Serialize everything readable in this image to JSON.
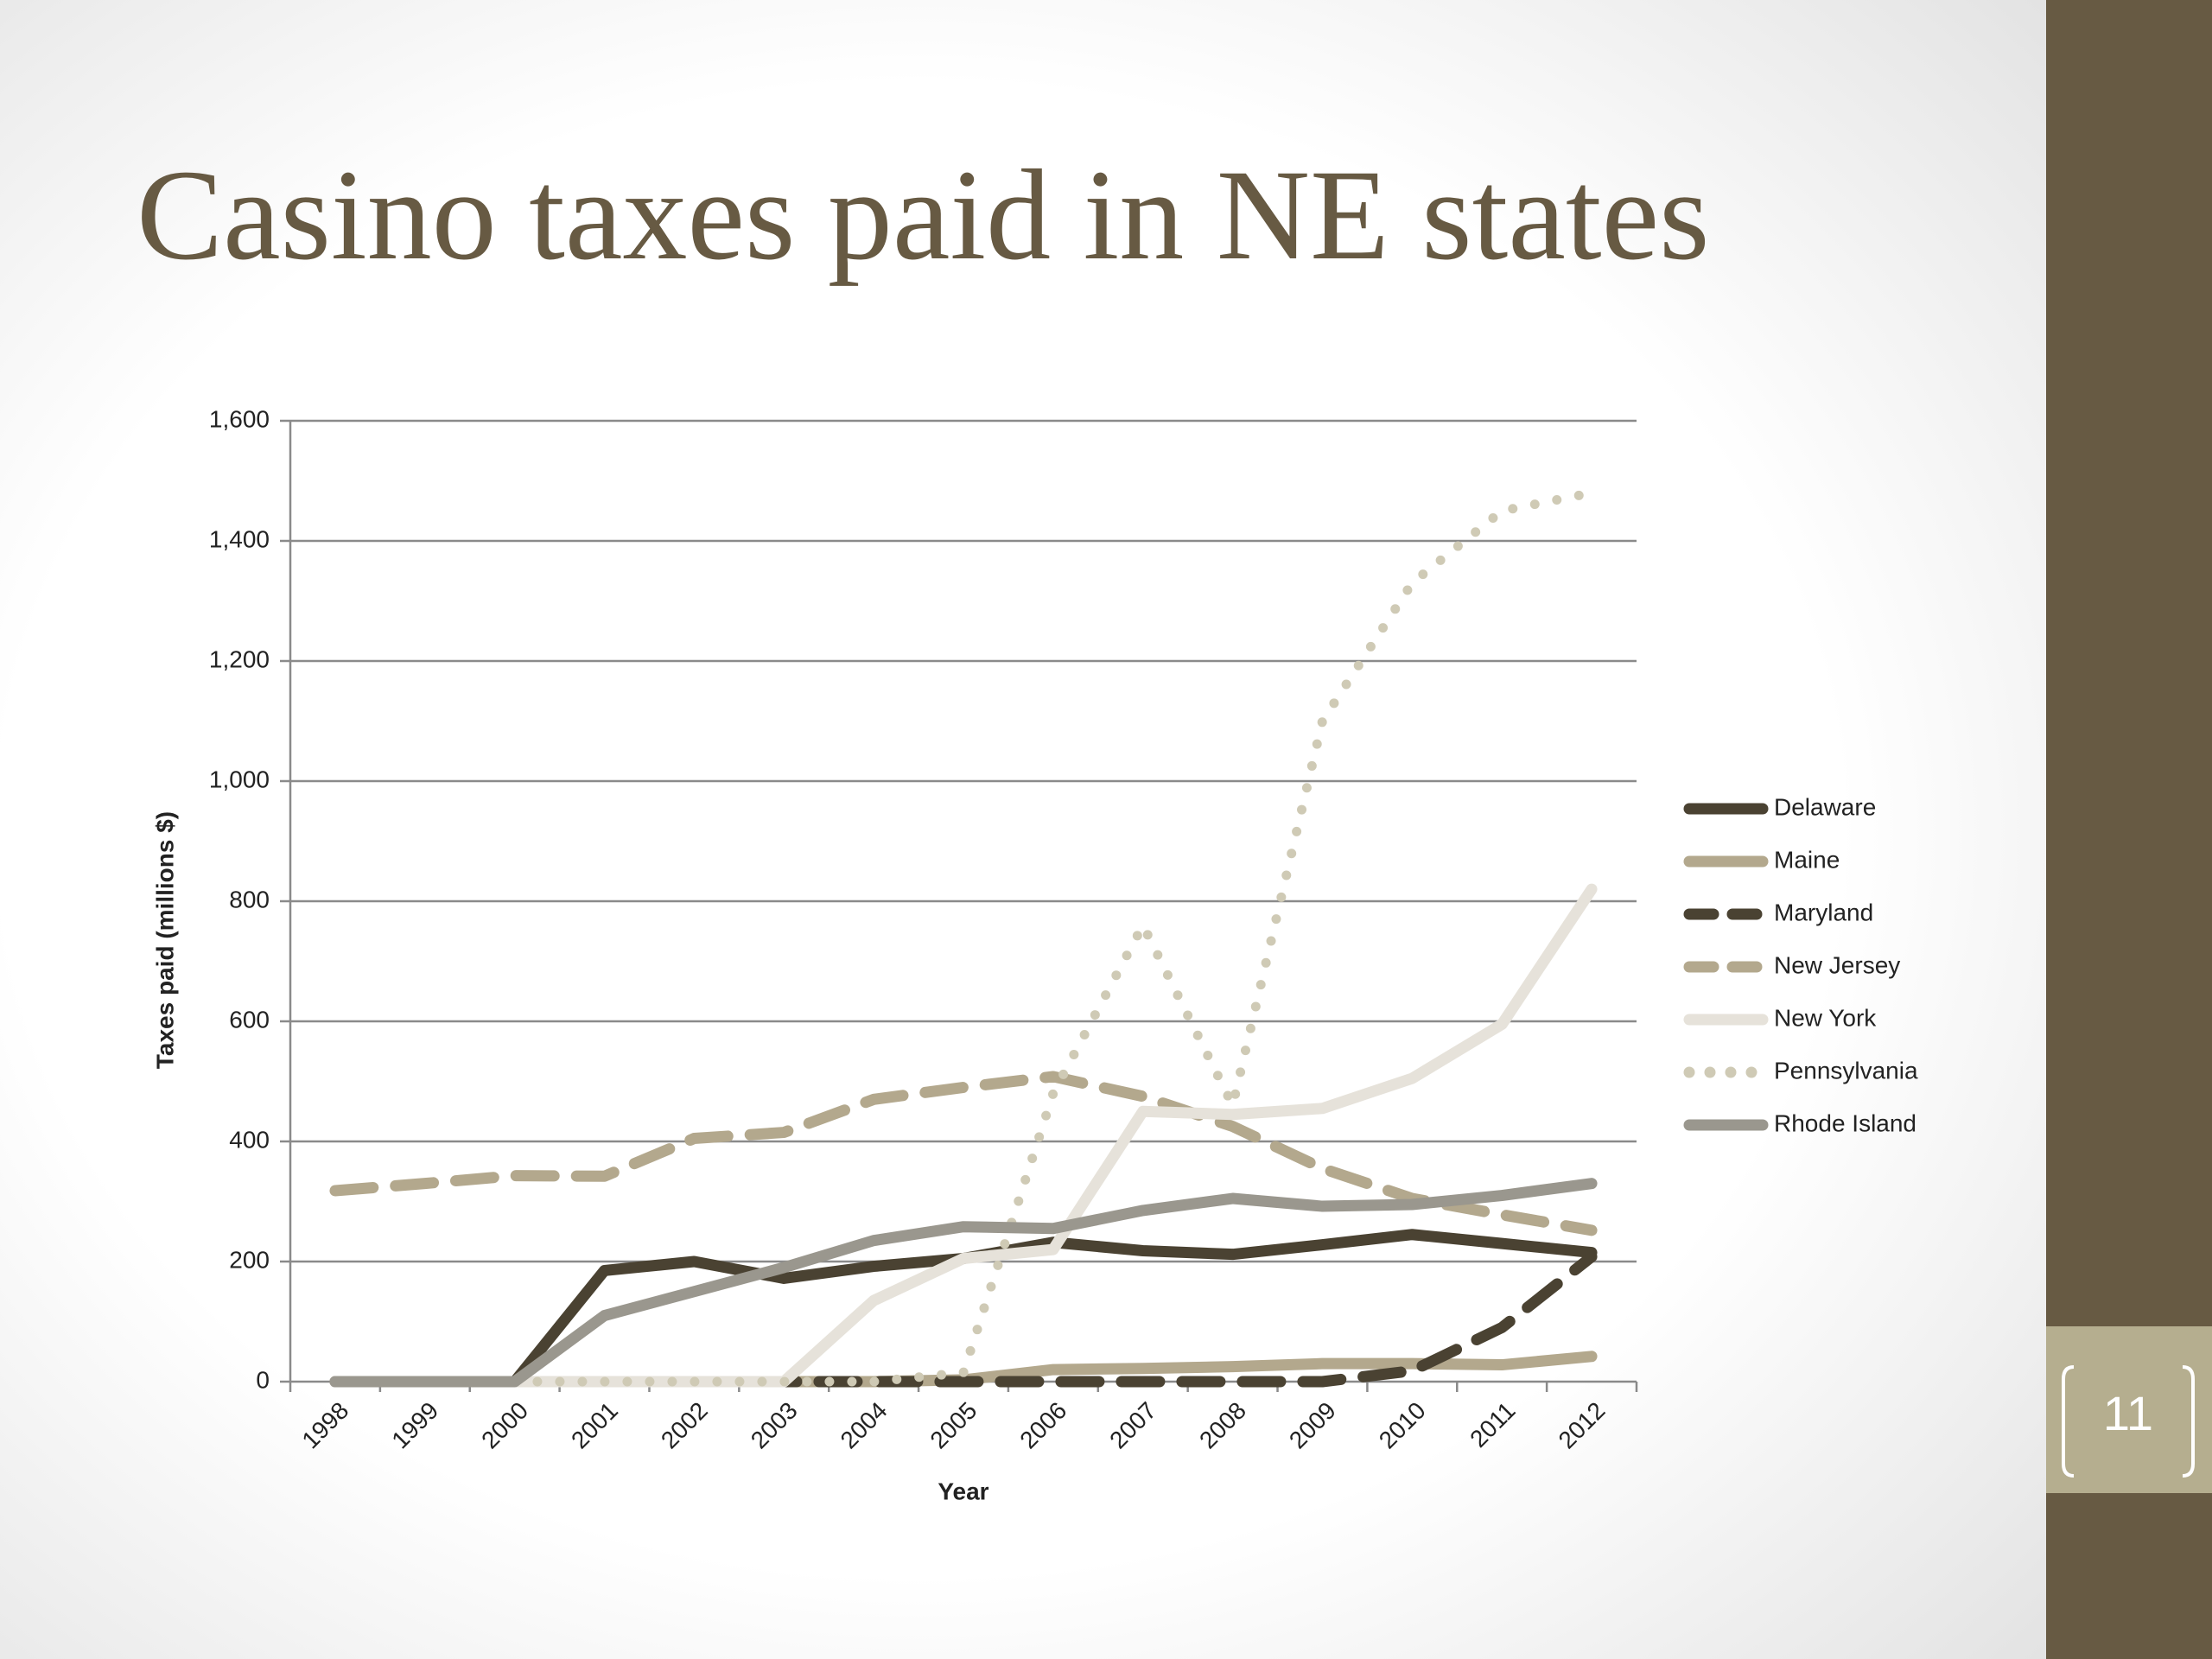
{
  "chart_data": {
    "type": "line",
    "title": "Casino taxes paid in NE states",
    "x_label": "Year",
    "y_label": "Taxes paid (millions $)",
    "categories": [
      "1998",
      "1999",
      "2000",
      "2001",
      "2002",
      "2003",
      "2004",
      "2005",
      "2006",
      "2007",
      "2008",
      "2009",
      "2010",
      "2011",
      "2012"
    ],
    "ylim": [
      0,
      1600
    ],
    "yticks": [
      0,
      200,
      400,
      600,
      800,
      {
        "value": 1000,
        "label": "1,000"
      },
      {
        "value": 1200,
        "label": "1,200"
      },
      {
        "value": 1400,
        "label": "1,400"
      },
      {
        "value": 1600,
        "label": "1,600"
      }
    ],
    "grid": true,
    "legend": "right",
    "series": [
      {
        "name": "Delaware",
        "color": "#4a4232",
        "style": "solid",
        "values": [
          0,
          0,
          0,
          185,
          200,
          172,
          192,
          205,
          232,
          218,
          212,
          228,
          245,
          230,
          215
        ]
      },
      {
        "name": "Maine",
        "color": "#b3a88d",
        "style": "solid",
        "values": [
          0,
          0,
          0,
          0,
          0,
          0,
          0,
          3,
          20,
          22,
          25,
          30,
          30,
          28,
          42
        ]
      },
      {
        "name": "Maryland",
        "color": "#4a4232",
        "style": "dashed",
        "values": [
          0,
          0,
          0,
          0,
          0,
          0,
          0,
          0,
          0,
          0,
          0,
          0,
          18,
          90,
          208
        ]
      },
      {
        "name": "New Jersey",
        "color": "#b3a88d",
        "style": "dashed",
        "values": [
          318,
          330,
          343,
          342,
          405,
          415,
          470,
          490,
          508,
          475,
          425,
          355,
          305,
          278,
          252
        ]
      },
      {
        "name": "New York",
        "color": "#e6e2da",
        "style": "solid",
        "values": [
          0,
          0,
          0,
          0,
          0,
          0,
          135,
          205,
          220,
          450,
          445,
          455,
          505,
          595,
          820
        ]
      },
      {
        "name": "Pennsylvania",
        "color": "#cfcab5",
        "style": "dotted",
        "values": [
          0,
          0,
          0,
          0,
          0,
          0,
          0,
          15,
          480,
          760,
          460,
          1100,
          1330,
          1450,
          1480
        ]
      },
      {
        "name": "Rhode Island",
        "color": "#9a978e",
        "style": "solid",
        "values": [
          0,
          0,
          0,
          110,
          150,
          190,
          235,
          258,
          255,
          285,
          305,
          292,
          295,
          310,
          330
        ]
      }
    ]
  },
  "slide": {
    "page_number": "11"
  }
}
